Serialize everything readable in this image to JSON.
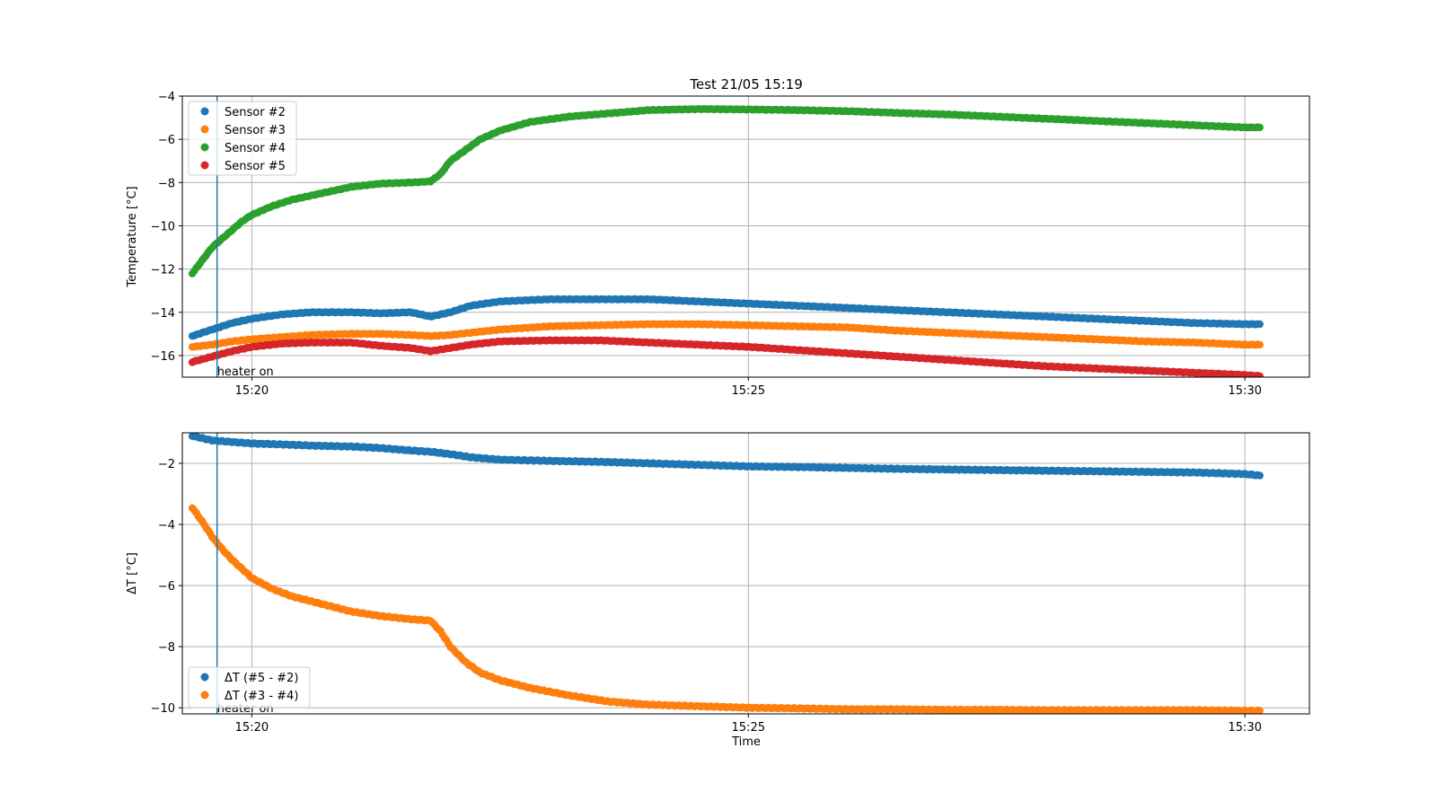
{
  "figure": {
    "title": "Test 21/05 15:19",
    "xlabel": "Time"
  },
  "chart_data": [
    {
      "type": "scatter",
      "title": "Test 21/05 15:19",
      "xlabel": "",
      "ylabel": "Temperature [°C]",
      "x_unit": "minutes after 15:00",
      "xlim": [
        19.3,
        30.65
      ],
      "ylim": [
        -17,
        -4
      ],
      "xticks": [
        20,
        25,
        30
      ],
      "xtick_labels": [
        "15:20",
        "15:25",
        "15:30"
      ],
      "yticks": [
        -16,
        -14,
        -12,
        -10,
        -8,
        -6,
        -4
      ],
      "ytick_labels": [
        "−16",
        "−14",
        "−12",
        "−10",
        "−8",
        "−6",
        "−4"
      ],
      "grid": true,
      "legend_position": "upper-left",
      "annotation": {
        "x": 19.65,
        "label": "heater on"
      },
      "series": [
        {
          "name": "Sensor #2",
          "color": "#1f77b4",
          "points": [
            [
              19.4,
              -15.1
            ],
            [
              19.6,
              -14.8
            ],
            [
              19.8,
              -14.5
            ],
            [
              20.0,
              -14.3
            ],
            [
              20.3,
              -14.1
            ],
            [
              20.6,
              -14.0
            ],
            [
              21.0,
              -14.0
            ],
            [
              21.3,
              -14.05
            ],
            [
              21.6,
              -14.0
            ],
            [
              21.8,
              -14.2
            ],
            [
              22.0,
              -14.0
            ],
            [
              22.2,
              -13.7
            ],
            [
              22.5,
              -13.5
            ],
            [
              23.0,
              -13.4
            ],
            [
              23.5,
              -13.4
            ],
            [
              24.0,
              -13.4
            ],
            [
              24.5,
              -13.5
            ],
            [
              25.0,
              -13.6
            ],
            [
              25.5,
              -13.7
            ],
            [
              26.0,
              -13.8
            ],
            [
              26.5,
              -13.9
            ],
            [
              27.0,
              -14.0
            ],
            [
              27.5,
              -14.1
            ],
            [
              28.0,
              -14.2
            ],
            [
              28.5,
              -14.3
            ],
            [
              29.0,
              -14.4
            ],
            [
              29.5,
              -14.5
            ],
            [
              30.0,
              -14.55
            ],
            [
              30.15,
              -14.55
            ]
          ]
        },
        {
          "name": "Sensor #3",
          "color": "#ff7f0e",
          "points": [
            [
              19.4,
              -15.6
            ],
            [
              19.6,
              -15.5
            ],
            [
              19.8,
              -15.35
            ],
            [
              20.0,
              -15.25
            ],
            [
              20.3,
              -15.15
            ],
            [
              20.6,
              -15.05
            ],
            [
              21.0,
              -15.0
            ],
            [
              21.3,
              -15.0
            ],
            [
              21.6,
              -15.05
            ],
            [
              21.8,
              -15.1
            ],
            [
              22.0,
              -15.05
            ],
            [
              22.2,
              -14.95
            ],
            [
              22.5,
              -14.8
            ],
            [
              23.0,
              -14.65
            ],
            [
              23.5,
              -14.6
            ],
            [
              24.0,
              -14.55
            ],
            [
              24.5,
              -14.55
            ],
            [
              25.0,
              -14.6
            ],
            [
              25.5,
              -14.65
            ],
            [
              26.0,
              -14.7
            ],
            [
              26.5,
              -14.85
            ],
            [
              27.0,
              -14.95
            ],
            [
              27.5,
              -15.05
            ],
            [
              28.0,
              -15.15
            ],
            [
              28.5,
              -15.25
            ],
            [
              29.0,
              -15.35
            ],
            [
              29.5,
              -15.4
            ],
            [
              30.0,
              -15.5
            ],
            [
              30.15,
              -15.5
            ]
          ]
        },
        {
          "name": "Sensor #4",
          "color": "#2ca02c",
          "points": [
            [
              19.4,
              -12.2
            ],
            [
              19.5,
              -11.6
            ],
            [
              19.6,
              -11.0
            ],
            [
              19.7,
              -10.6
            ],
            [
              19.8,
              -10.2
            ],
            [
              19.9,
              -9.8
            ],
            [
              20.0,
              -9.5
            ],
            [
              20.2,
              -9.1
            ],
            [
              20.4,
              -8.8
            ],
            [
              20.7,
              -8.5
            ],
            [
              21.0,
              -8.2
            ],
            [
              21.3,
              -8.05
            ],
            [
              21.6,
              -8.0
            ],
            [
              21.8,
              -7.95
            ],
            [
              21.9,
              -7.6
            ],
            [
              22.0,
              -7.0
            ],
            [
              22.15,
              -6.5
            ],
            [
              22.3,
              -6.0
            ],
            [
              22.5,
              -5.6
            ],
            [
              22.8,
              -5.2
            ],
            [
              23.2,
              -4.95
            ],
            [
              23.6,
              -4.8
            ],
            [
              24.0,
              -4.65
            ],
            [
              24.5,
              -4.6
            ],
            [
              25.0,
              -4.62
            ],
            [
              25.5,
              -4.65
            ],
            [
              26.0,
              -4.7
            ],
            [
              26.5,
              -4.78
            ],
            [
              27.0,
              -4.85
            ],
            [
              27.5,
              -4.95
            ],
            [
              28.0,
              -5.05
            ],
            [
              28.5,
              -5.15
            ],
            [
              29.0,
              -5.25
            ],
            [
              29.5,
              -5.35
            ],
            [
              30.0,
              -5.45
            ],
            [
              30.15,
              -5.45
            ]
          ]
        },
        {
          "name": "Sensor #5",
          "color": "#d62728",
          "points": [
            [
              19.4,
              -16.3
            ],
            [
              19.6,
              -16.05
            ],
            [
              19.8,
              -15.8
            ],
            [
              20.0,
              -15.6
            ],
            [
              20.3,
              -15.45
            ],
            [
              20.6,
              -15.4
            ],
            [
              21.0,
              -15.4
            ],
            [
              21.3,
              -15.55
            ],
            [
              21.6,
              -15.65
            ],
            [
              21.8,
              -15.8
            ],
            [
              22.0,
              -15.65
            ],
            [
              22.2,
              -15.5
            ],
            [
              22.5,
              -15.35
            ],
            [
              23.0,
              -15.3
            ],
            [
              23.5,
              -15.3
            ],
            [
              24.0,
              -15.4
            ],
            [
              24.5,
              -15.5
            ],
            [
              25.0,
              -15.6
            ],
            [
              25.5,
              -15.75
            ],
            [
              26.0,
              -15.9
            ],
            [
              26.5,
              -16.05
            ],
            [
              27.0,
              -16.2
            ],
            [
              27.5,
              -16.35
            ],
            [
              28.0,
              -16.5
            ],
            [
              28.5,
              -16.6
            ],
            [
              29.0,
              -16.7
            ],
            [
              29.5,
              -16.8
            ],
            [
              30.0,
              -16.9
            ],
            [
              30.15,
              -16.95
            ]
          ]
        }
      ]
    },
    {
      "type": "scatter",
      "title": "",
      "xlabel": "Time",
      "ylabel": "ΔT [°C]",
      "x_unit": "minutes after 15:00",
      "xlim": [
        19.3,
        30.65
      ],
      "ylim": [
        -10.2,
        -1.0
      ],
      "xticks": [
        20,
        25,
        30
      ],
      "xtick_labels": [
        "15:20",
        "15:25",
        "15:30"
      ],
      "yticks": [
        -10,
        -8,
        -6,
        -4,
        -2
      ],
      "ytick_labels": [
        "−10",
        "−8",
        "−6",
        "−4",
        "−2"
      ],
      "grid": true,
      "legend_position": "lower-left",
      "annotation": {
        "x": 19.65,
        "label": "heater on"
      },
      "series": [
        {
          "name": "ΔT (#5 - #2)",
          "color": "#1f77b4",
          "points": [
            [
              19.4,
              -1.1
            ],
            [
              19.6,
              -1.25
            ],
            [
              19.8,
              -1.3
            ],
            [
              20.0,
              -1.35
            ],
            [
              20.3,
              -1.38
            ],
            [
              20.6,
              -1.42
            ],
            [
              21.0,
              -1.45
            ],
            [
              21.3,
              -1.5
            ],
            [
              21.6,
              -1.58
            ],
            [
              21.8,
              -1.62
            ],
            [
              22.0,
              -1.7
            ],
            [
              22.2,
              -1.8
            ],
            [
              22.5,
              -1.88
            ],
            [
              23.0,
              -1.92
            ],
            [
              23.5,
              -1.95
            ],
            [
              24.0,
              -2.0
            ],
            [
              24.5,
              -2.05
            ],
            [
              25.0,
              -2.1
            ],
            [
              25.5,
              -2.12
            ],
            [
              26.0,
              -2.15
            ],
            [
              26.5,
              -2.18
            ],
            [
              27.0,
              -2.2
            ],
            [
              27.5,
              -2.22
            ],
            [
              28.0,
              -2.24
            ],
            [
              28.5,
              -2.26
            ],
            [
              29.0,
              -2.28
            ],
            [
              29.5,
              -2.3
            ],
            [
              30.0,
              -2.35
            ],
            [
              30.15,
              -2.4
            ]
          ]
        },
        {
          "name": "ΔT (#3 - #4)",
          "color": "#ff7f0e",
          "points": [
            [
              19.4,
              -3.45
            ],
            [
              19.5,
              -3.9
            ],
            [
              19.6,
              -4.4
            ],
            [
              19.7,
              -4.8
            ],
            [
              19.8,
              -5.15
            ],
            [
              19.9,
              -5.45
            ],
            [
              20.0,
              -5.75
            ],
            [
              20.2,
              -6.1
            ],
            [
              20.4,
              -6.35
            ],
            [
              20.7,
              -6.6
            ],
            [
              21.0,
              -6.85
            ],
            [
              21.3,
              -7.0
            ],
            [
              21.6,
              -7.1
            ],
            [
              21.8,
              -7.15
            ],
            [
              21.9,
              -7.5
            ],
            [
              22.0,
              -8.0
            ],
            [
              22.15,
              -8.5
            ],
            [
              22.3,
              -8.85
            ],
            [
              22.5,
              -9.1
            ],
            [
              22.8,
              -9.35
            ],
            [
              23.2,
              -9.6
            ],
            [
              23.6,
              -9.8
            ],
            [
              24.0,
              -9.9
            ],
            [
              24.5,
              -9.95
            ],
            [
              25.0,
              -10.0
            ],
            [
              25.5,
              -10.02
            ],
            [
              26.0,
              -10.05
            ],
            [
              26.5,
              -10.05
            ],
            [
              27.0,
              -10.07
            ],
            [
              27.5,
              -10.07
            ],
            [
              28.0,
              -10.08
            ],
            [
              28.5,
              -10.08
            ],
            [
              29.0,
              -10.08
            ],
            [
              29.5,
              -10.08
            ],
            [
              30.0,
              -10.1
            ],
            [
              30.15,
              -10.1
            ]
          ]
        }
      ]
    }
  ]
}
